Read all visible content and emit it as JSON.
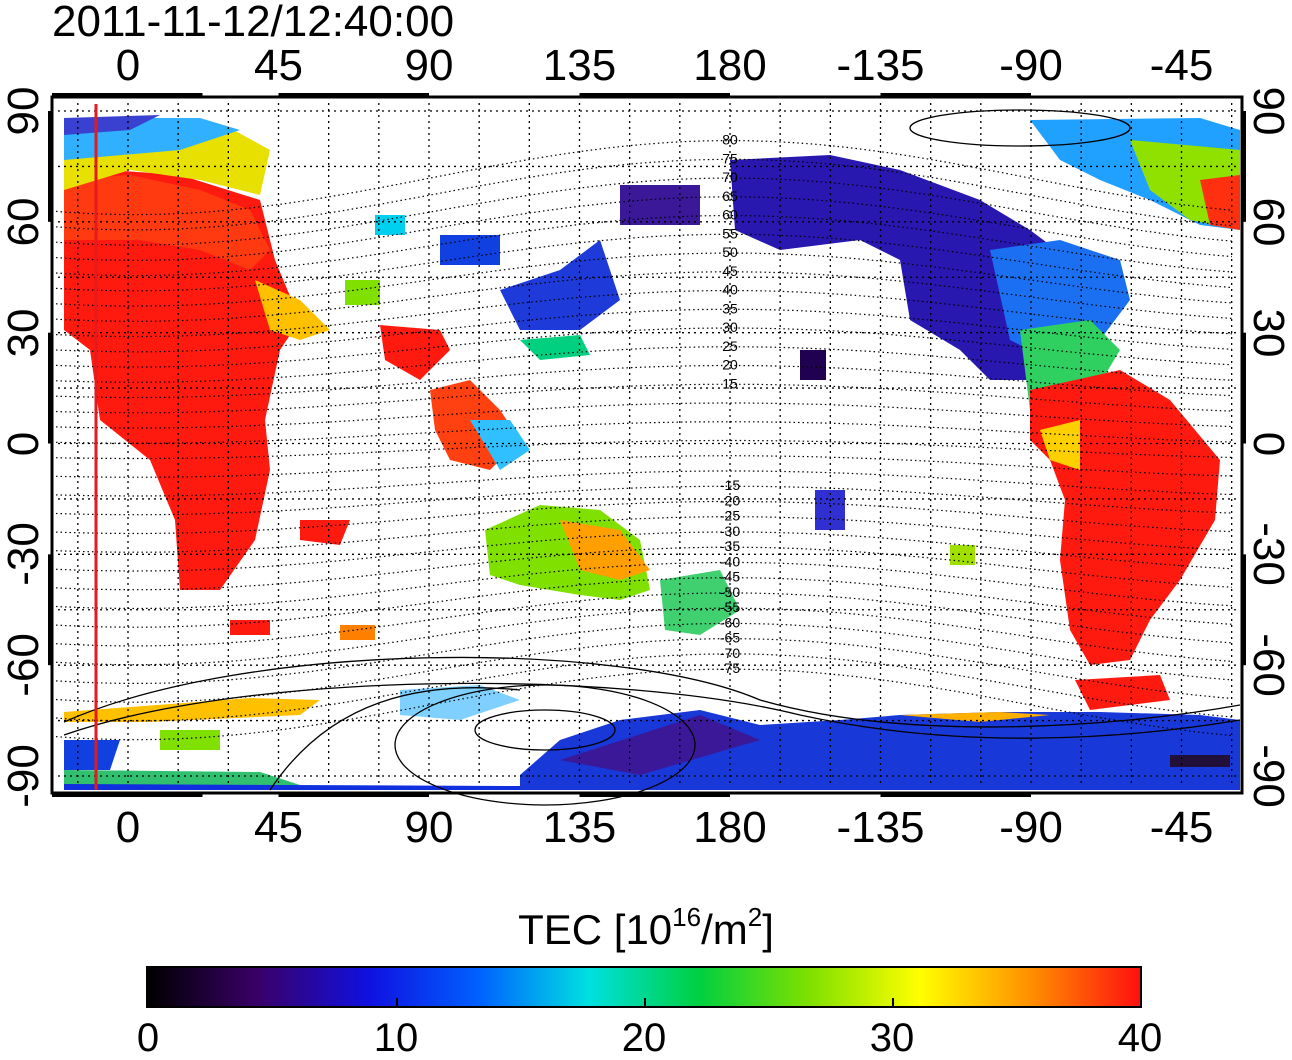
{
  "title": "2011-11-12/12:40:00",
  "map": {
    "top_lon_ticks": [
      "0",
      "45",
      "90",
      "135",
      "180",
      "-135",
      "-90",
      "-45"
    ],
    "bottom_lon_ticks": [
      "0",
      "45",
      "90",
      "135",
      "180",
      "-135",
      "-90",
      "-45"
    ],
    "left_lat_ticks": [
      "90",
      "60",
      "30",
      "0",
      "-30",
      "-60",
      "-90"
    ],
    "right_lat_ticks": [
      "90",
      "60",
      "30",
      "0",
      "-30",
      "-60",
      "-90"
    ],
    "contour_labels": [
      "80",
      "75",
      "70",
      "65",
      "60",
      "55",
      "50",
      "45",
      "40",
      "35",
      "30",
      "25",
      "20",
      "15",
      "-15",
      "-20",
      "-25",
      "-30",
      "-35",
      "-40",
      "-45",
      "-50",
      "-55",
      "-60",
      "-65",
      "-70",
      "-75"
    ],
    "colors": {
      "terminator_line": "#e41a1c",
      "frame": "#000000",
      "grid": "#000000"
    }
  },
  "colorbar": {
    "label_prefix": "TEC  [10",
    "label_exp1": "16",
    "label_mid": "/m",
    "label_exp2": "2",
    "label_suffix": "]",
    "ticks": [
      "0",
      "10",
      "20",
      "30",
      "40"
    ],
    "range": [
      0,
      40
    ],
    "colormap": [
      "#000000",
      "#3a0068",
      "#1010e0",
      "#0060ff",
      "#00e0e0",
      "#00d040",
      "#80e000",
      "#ffff00",
      "#ff9000",
      "#ff1010"
    ]
  }
}
